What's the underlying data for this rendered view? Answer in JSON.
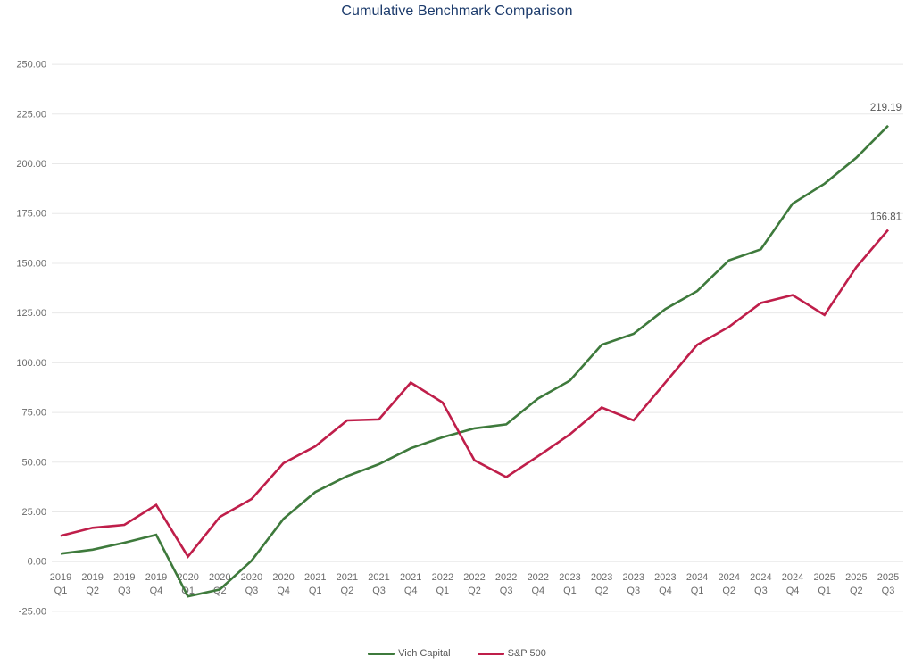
{
  "page": {
    "background": "#ffffff"
  },
  "chart_data": {
    "type": "line",
    "title": "Cumulative Benchmark Comparison",
    "title_color": "#1b3a6b",
    "categories": [
      "2019 Q1",
      "2019 Q2",
      "2019 Q3",
      "2019 Q4",
      "2020 Q1",
      "2020 Q2",
      "2020 Q3",
      "2020 Q4",
      "2021 Q1",
      "2021 Q2",
      "2021 Q3",
      "2021 Q4",
      "2022 Q1",
      "2022 Q2",
      "2022 Q3",
      "2022 Q4",
      "2023 Q1",
      "2023 Q2",
      "2023 Q3",
      "2023 Q4",
      "2024 Q1",
      "2024 Q2",
      "2024 Q3",
      "2024 Q4",
      "2025 Q1",
      "2025 Q2",
      "2025 Q3"
    ],
    "series": [
      {
        "name": "Vich Capital",
        "color": "#3e7a3c",
        "end_label": "219.19",
        "values": [
          4.0,
          6.0,
          9.5,
          13.5,
          -17.5,
          -14.0,
          0.5,
          21.5,
          35.0,
          43.0,
          49.0,
          57.0,
          62.5,
          67.0,
          69.0,
          82.0,
          91.0,
          109.0,
          114.5,
          127.0,
          136.0,
          151.5,
          157.0,
          180.0,
          190.0,
          203.0,
          219.19
        ]
      },
      {
        "name": "S&P 500",
        "color": "#bf1e4a",
        "end_label": "166.81",
        "values": [
          13.0,
          17.0,
          18.5,
          28.5,
          2.5,
          22.5,
          31.5,
          49.5,
          58.0,
          71.0,
          71.5,
          90.0,
          80.0,
          51.0,
          42.5,
          53.0,
          64.0,
          77.5,
          71.0,
          90.0,
          109.0,
          118.0,
          130.0,
          134.0,
          124.0,
          148.0,
          166.81
        ]
      }
    ],
    "y_axis": {
      "min": -25,
      "max": 250,
      "step": 25,
      "tick_labels": [
        "250.00",
        "225.00",
        "200.00",
        "175.00",
        "150.00",
        "125.00",
        "100.00",
        "75.00",
        "50.00",
        "25.00",
        "0.00",
        "-25.00"
      ]
    },
    "grid": true,
    "grid_color": "#e8e8e8",
    "axis_label_color": "#6b6b6b",
    "end_label_color": "#595959",
    "legend_position": "bottom-center",
    "ylim": [
      -25,
      250
    ]
  }
}
